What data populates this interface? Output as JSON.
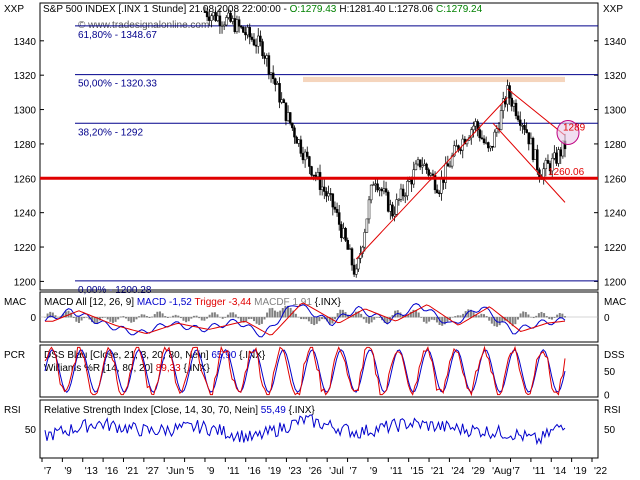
{
  "header": {
    "title": "S&P 500 INDEX [.INX  1 Stunde] 21.08.2008 22:00:00 - ",
    "o_label": "O:",
    "o_value": "1279.43",
    "h_label": "H:",
    "h_value": "1281.40",
    "l_label": "L:",
    "l_value": "1278.06",
    "c_label": "C:",
    "c_value": "1279.24",
    "watermark": "© www.tradesignalonline.com",
    "axis_label_left": "XXP",
    "axis_label_right": "XXP"
  },
  "colors": {
    "candle_up": "#ffffff",
    "candle_down": "#000000",
    "wick": "#000000",
    "support": "#e00000",
    "fib": "#00008b",
    "trend": "#e00000",
    "zone": "#f5d5bd",
    "green": "#008000",
    "red": "#e00000",
    "blue": "#0000cc",
    "gray": "#808080"
  },
  "chart_data": [
    {
      "type": "candlestick",
      "ylim": [
        1195,
        1362
      ],
      "yticks": [
        1200,
        1220,
        1240,
        1260,
        1280,
        1300,
        1320,
        1340
      ],
      "levels": {
        "support": 1260,
        "zone_low": 1316,
        "zone_high": 1319,
        "value_1289": 1289,
        "value_1260_06": 1260.06
      },
      "fib_levels": [
        {
          "label": "61,80% - 1348.67",
          "value": 1348.67
        },
        {
          "label": "50,00% - 1320.33",
          "value": 1320.33
        },
        {
          "label": "38,20% - 1292",
          "value": 1292
        },
        {
          "label": "0,00% - 1200.28",
          "value": 1200.28
        }
      ],
      "price_labels": {
        "label_1289": "1289",
        "label_1260": "1260.06"
      },
      "path_x": [
        0,
        0.08,
        0.16,
        0.22,
        0.28,
        0.36,
        0.42,
        0.47,
        0.52,
        0.6,
        0.65,
        0.7,
        0.75,
        0.79,
        0.84,
        0.89,
        0.93,
        0.97,
        1
      ],
      "path_y": [
        1357,
        1350,
        1336,
        1300,
        1272,
        1242,
        1203,
        1262,
        1240,
        1270,
        1255,
        1278,
        1292,
        1274,
        1310,
        1290,
        1263,
        1270,
        1279
      ],
      "trend_lines": [
        {
          "from": [
            0.42,
            1213
          ],
          "to": [
            0.84,
            1307
          ]
        },
        {
          "from": [
            0.8,
            1292
          ],
          "to": [
            1.0,
            1246
          ]
        },
        {
          "from": [
            0.84,
            1312
          ],
          "to": [
            1.0,
            1285
          ]
        }
      ]
    },
    {
      "type": "line",
      "name": "MACD",
      "header_parts": [
        {
          "text": "MACD All [12, 26, 9] ",
          "color": "#000000"
        },
        {
          "text": "MACD -1,52 ",
          "color": "#0000cc"
        },
        {
          "text": "Trigger -3,44 ",
          "color": "#e00000"
        },
        {
          "text": "MACDF 1,91 ",
          "color": "#808080"
        },
        {
          "text": "{.INX}",
          "color": "#000000"
        }
      ],
      "left_label": "MAC",
      "right_label": "MAC",
      "ylim": [
        -12,
        12
      ],
      "yticks": [
        0
      ],
      "path_x": [
        0,
        0.05,
        0.12,
        0.18,
        0.24,
        0.3,
        0.37,
        0.42,
        0.48,
        0.55,
        0.6,
        0.66,
        0.72,
        0.78,
        0.84,
        0.9,
        0.95,
        1
      ],
      "path_y": [
        -2,
        3,
        -4,
        -8,
        -3,
        -6,
        -2,
        -9,
        7,
        -3,
        4,
        -2,
        6,
        -4,
        5,
        -7,
        -3,
        -1.5
      ]
    },
    {
      "type": "line",
      "name": "DSS",
      "header_parts": [
        {
          "text": "DSS Blau [Close, 21, 3, 20, 80, Nein] ",
          "color": "#000000"
        },
        {
          "text": "65,90",
          "color": "#0000cc"
        },
        {
          "text": " {.INX}",
          "color": "#000000"
        }
      ],
      "header_parts_2": [
        {
          "text": "Williams %R [14, 80, 20] ",
          "color": "#000000"
        },
        {
          "text": "89,33",
          "color": "#e00000"
        },
        {
          "text": " {.INX}",
          "color": "#000000"
        }
      ],
      "left_label": "PCR",
      "right_label": "DSS",
      "ylim": [
        -5,
        105
      ],
      "yticks": [
        50,
        0
      ],
      "cycles": 18
    },
    {
      "type": "line",
      "name": "RSI",
      "header_parts": [
        {
          "text": "Relative Strength Index [Close, 14, 30, 70, Nein] ",
          "color": "#000000"
        },
        {
          "text": "55,49",
          "color": "#0000cc"
        },
        {
          "text": " {.INX}",
          "color": "#000000"
        }
      ],
      "left_label": "RSI",
      "right_label": "RSI",
      "ylim": [
        25,
        75
      ],
      "yticks": [
        50
      ],
      "path_x": [
        0,
        0.1,
        0.2,
        0.3,
        0.4,
        0.5,
        0.6,
        0.7,
        0.8,
        0.9,
        0.95,
        1
      ],
      "path_y": [
        44,
        55,
        48,
        52,
        42,
        58,
        47,
        55,
        50,
        46,
        40,
        55.5
      ]
    }
  ],
  "x_axis": {
    "ticks": [
      "7",
      "9",
      "13",
      "16",
      "21",
      "27",
      "Jun",
      "5",
      "9",
      "11",
      "16",
      "19",
      "23",
      "26",
      "Jul",
      "7",
      "9",
      "11",
      "15",
      "21",
      "24",
      "29",
      "Aug",
      "7",
      "11",
      "14",
      "19",
      "22"
    ],
    "positions": [
      0.01,
      0.04,
      0.09,
      0.15,
      0.2,
      0.26,
      0.36,
      0.43,
      0.47,
      0.53,
      0.58,
      0.64,
      0.69,
      0.74,
      0.79,
      0.85,
      0.9,
      0.95,
      1.0,
      1.08,
      1.14,
      1.2,
      1.28,
      1.33,
      1.38,
      1.44,
      1.5,
      1.55
    ]
  }
}
